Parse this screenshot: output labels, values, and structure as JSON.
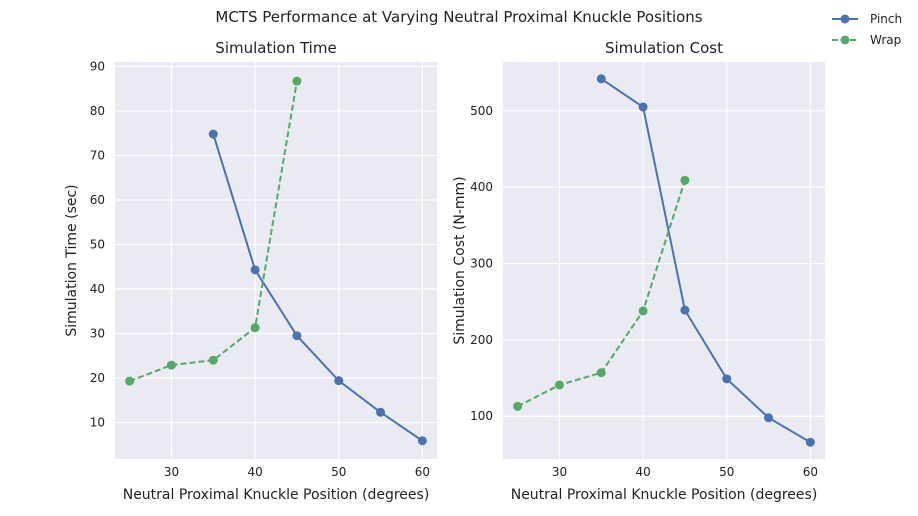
{
  "figure": {
    "suptitle": "MCTS Performance at Varying Neutral Proximal Knuckle Positions"
  },
  "legend": {
    "placement": "top-right",
    "entries": [
      "Pinch",
      "Wrap"
    ]
  },
  "colors": {
    "pinch": "#4C72B0",
    "wrap": "#55A868",
    "plot_bg": "#EAEAF2",
    "grid": "#FFFFFF"
  },
  "chart_data": [
    {
      "type": "line",
      "title": "Simulation Time",
      "xlabel": "Neutral Proximal Knuckle Position (degrees)",
      "ylabel": "Simulation Time (sec)",
      "xlim": [
        23.25,
        61.75
      ],
      "ylim": [
        1.8,
        91.0
      ],
      "xticks": [
        30,
        40,
        50,
        60
      ],
      "yticks": [
        10,
        20,
        30,
        40,
        50,
        60,
        70,
        80,
        90
      ],
      "grid": true,
      "series": [
        {
          "name": "Pinch",
          "style": "solid",
          "x": [
            35,
            40,
            45,
            50,
            55,
            60
          ],
          "y": [
            74.8,
            44.3,
            29.5,
            19.4,
            12.3,
            5.9
          ]
        },
        {
          "name": "Wrap",
          "style": "dashed",
          "x": [
            25,
            30,
            35,
            40,
            45
          ],
          "y": [
            19.3,
            22.9,
            24.0,
            31.3,
            86.7
          ]
        }
      ]
    },
    {
      "type": "line",
      "title": "Simulation Cost",
      "xlabel": "Neutral Proximal Knuckle Position (degrees)",
      "ylabel": "Simulation Cost (N-mm)",
      "xlim": [
        23.25,
        61.75
      ],
      "ylim": [
        44,
        564
      ],
      "xticks": [
        30,
        40,
        50,
        60
      ],
      "yticks": [
        100,
        200,
        300,
        400,
        500
      ],
      "grid": true,
      "series": [
        {
          "name": "Pinch",
          "style": "solid",
          "x": [
            35,
            40,
            45,
            50,
            55,
            60
          ],
          "y": [
            542,
            505,
            239,
            149,
            98,
            66
          ]
        },
        {
          "name": "Wrap",
          "style": "dashed",
          "x": [
            25,
            30,
            35,
            40,
            45
          ],
          "y": [
            113,
            141,
            157,
            238,
            409
          ]
        }
      ]
    }
  ]
}
